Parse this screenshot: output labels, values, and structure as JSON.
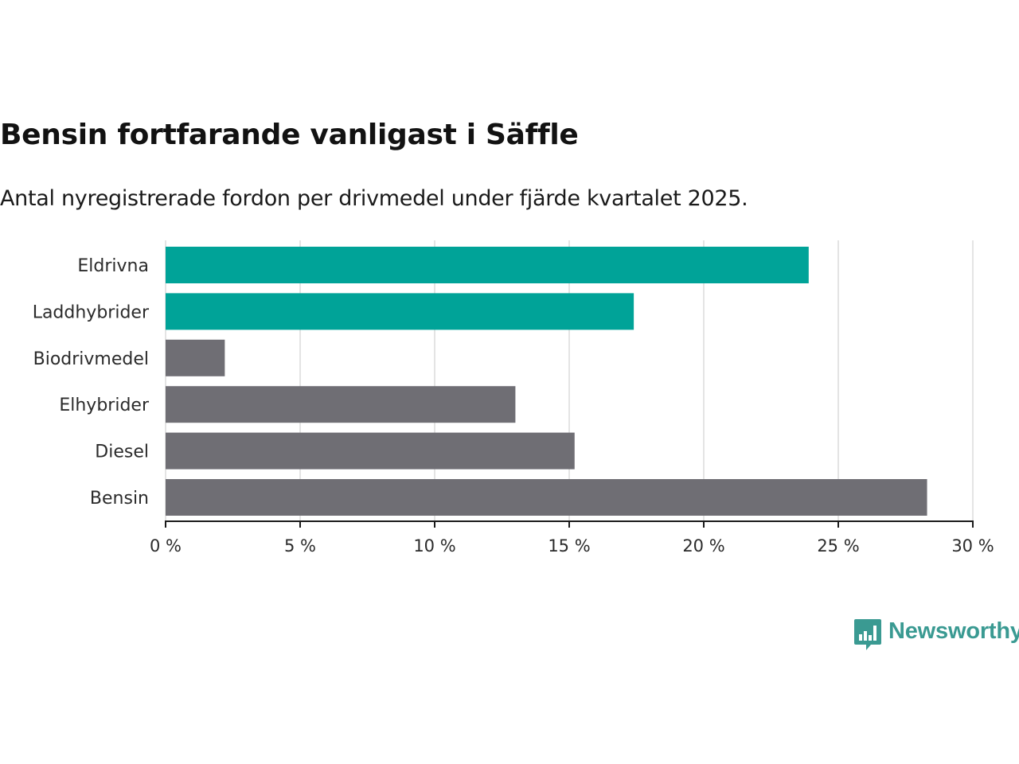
{
  "chart_data": {
    "type": "bar",
    "orientation": "horizontal",
    "title": "Bensin fortfarande vanligast i Säffle",
    "subtitle": "Antal nyregistrerade fordon per drivmedel under fjärde kvartalet 2025.",
    "categories": [
      "Eldrivna",
      "Laddhybrider",
      "Biodrivmedel",
      "Elhybrider",
      "Diesel",
      "Bensin"
    ],
    "values": [
      23.9,
      17.4,
      2.2,
      13.0,
      15.2,
      28.3
    ],
    "colors": [
      "#00a398",
      "#00a398",
      "#6f6e74",
      "#6f6e74",
      "#6f6e74",
      "#6f6e74"
    ],
    "xlim": [
      0,
      30
    ],
    "xticks": [
      0,
      5,
      10,
      15,
      20,
      25,
      30
    ],
    "xtick_labels": [
      "0 %",
      "5 %",
      "10 %",
      "15 %",
      "20 %",
      "25 %",
      "30 %"
    ],
    "xlabel": "",
    "ylabel": "",
    "grid": true
  },
  "logo": {
    "text": "Newsworthy",
    "color": "#3a9a92"
  }
}
